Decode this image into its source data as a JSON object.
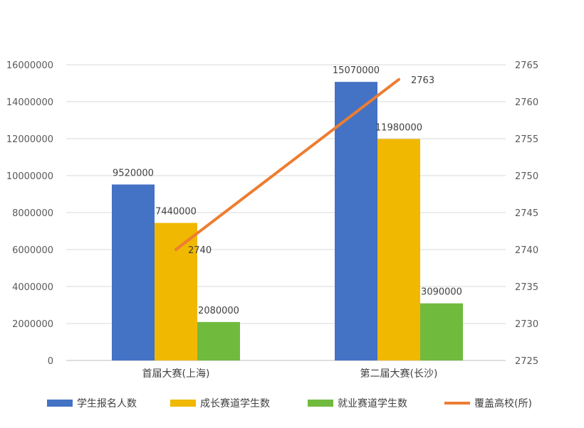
{
  "chart_data": {
    "type": "bar",
    "title": "",
    "categories": [
      "首届大赛(上海)",
      "第二届大赛(长沙)"
    ],
    "series": [
      {
        "name": "学生报名人数",
        "type": "bar",
        "axis": "left",
        "values": [
          9520000,
          15070000
        ],
        "labels": [
          "9520000",
          "15070000"
        ],
        "color": "#4472C4"
      },
      {
        "name": "成长赛道学生数",
        "type": "bar",
        "axis": "left",
        "values": [
          7440000,
          11980000
        ],
        "labels": [
          "7440000",
          "11980000"
        ],
        "color": "#F0B800"
      },
      {
        "name": "就业赛道学生数",
        "type": "bar",
        "axis": "left",
        "values": [
          2080000,
          3090000
        ],
        "labels": [
          "2080000",
          "3090000"
        ],
        "color": "#70BB3E"
      },
      {
        "name": "覆盖高校(所)",
        "type": "line",
        "axis": "right",
        "values": [
          2740,
          2763
        ],
        "labels": [
          "2740",
          "2763"
        ],
        "color": "#ED7D31"
      }
    ],
    "y_left": {
      "min": 0,
      "max": 16000000,
      "step": 2000000,
      "ticks": [
        "0",
        "2000000",
        "4000000",
        "6000000",
        "8000000",
        "10000000",
        "12000000",
        "14000000",
        "16000000"
      ]
    },
    "y_right": {
      "min": 2725,
      "max": 2765,
      "step": 5,
      "ticks": [
        "2725",
        "2730",
        "2735",
        "2740",
        "2745",
        "2750",
        "2755",
        "2760",
        "2765"
      ]
    },
    "grid": true,
    "legend_position": "bottom",
    "gridline_color": "#D9D9D9"
  }
}
